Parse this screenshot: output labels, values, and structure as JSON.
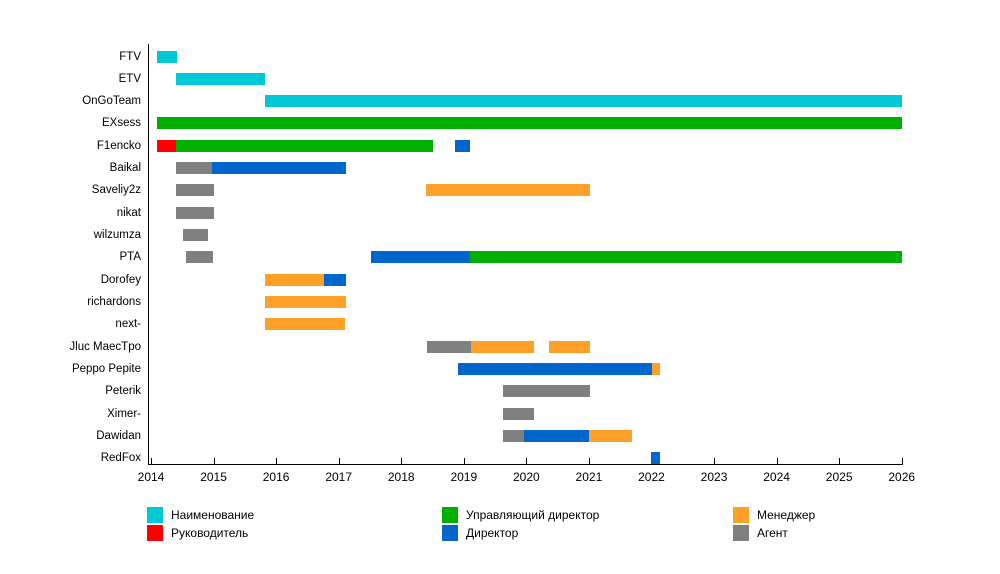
{
  "chart_data": {
    "type": "gantt",
    "title": "",
    "x_axis": {
      "min": 2014,
      "max": 2026,
      "tick_labels": [
        "2014",
        "2015",
        "2016",
        "2017",
        "2018",
        "2019",
        "2020",
        "2021",
        "2022",
        "2023",
        "2024",
        "2025",
        "2026"
      ]
    },
    "legend_position": "bottom",
    "legend": [
      {
        "label": "Наименование",
        "role": "name"
      },
      {
        "label": "Руководитель",
        "role": "head"
      },
      {
        "label": "Управляющий директор",
        "role": "managing_director"
      },
      {
        "label": "Директор",
        "role": "director"
      },
      {
        "label": "Менеджер",
        "role": "manager"
      },
      {
        "label": "Агент",
        "role": "agent"
      }
    ],
    "colors": {
      "name": "#00C8D4",
      "head": "#FF0000",
      "managing_director": "#00AF00",
      "director": "#0066CC",
      "manager": "#FFA028",
      "agent": "#808080"
    },
    "rows": [
      {
        "label": "FTV",
        "segments": [
          {
            "role": "name",
            "start": 2014.1,
            "end": 2014.41
          }
        ]
      },
      {
        "label": "ETV",
        "segments": [
          {
            "role": "name",
            "start": 2014.4,
            "end": 2015.83
          }
        ]
      },
      {
        "label": "OnGoTeam",
        "segments": [
          {
            "role": "name",
            "start": 2015.82,
            "end": 2026.0
          }
        ]
      },
      {
        "label": "EXsess",
        "segments": [
          {
            "role": "managing_director",
            "start": 2014.1,
            "end": 2026.0
          }
        ]
      },
      {
        "label": "F1encko",
        "segments": [
          {
            "role": "head",
            "start": 2014.1,
            "end": 2014.4
          },
          {
            "role": "managing_director",
            "start": 2014.4,
            "end": 2018.51
          },
          {
            "role": "director",
            "start": 2018.86,
            "end": 2019.1
          }
        ]
      },
      {
        "label": "Baikal",
        "segments": [
          {
            "role": "agent",
            "start": 2014.4,
            "end": 2014.98
          },
          {
            "role": "director",
            "start": 2014.98,
            "end": 2017.11
          }
        ]
      },
      {
        "label": "Saveliy2z",
        "segments": [
          {
            "role": "agent",
            "start": 2014.4,
            "end": 2015.0
          },
          {
            "role": "manager",
            "start": 2018.4,
            "end": 2021.01
          }
        ]
      },
      {
        "label": "nikat",
        "segments": [
          {
            "role": "agent",
            "start": 2014.4,
            "end": 2015.0
          }
        ]
      },
      {
        "label": "wilzumza",
        "segments": [
          {
            "role": "agent",
            "start": 2014.51,
            "end": 2014.91
          }
        ]
      },
      {
        "label": "PTA",
        "segments": [
          {
            "role": "agent",
            "start": 2014.56,
            "end": 2014.99
          },
          {
            "role": "director",
            "start": 2017.52,
            "end": 2019.1
          },
          {
            "role": "managing_director",
            "start": 2019.1,
            "end": 2026.0
          }
        ]
      },
      {
        "label": "Dorofey",
        "segments": [
          {
            "role": "manager",
            "start": 2015.82,
            "end": 2016.77
          },
          {
            "role": "director",
            "start": 2016.77,
            "end": 2017.11
          }
        ]
      },
      {
        "label": "richardons",
        "segments": [
          {
            "role": "manager",
            "start": 2015.82,
            "end": 2017.11
          }
        ]
      },
      {
        "label": "next-",
        "segments": [
          {
            "role": "manager",
            "start": 2015.82,
            "end": 2017.1
          }
        ]
      },
      {
        "label": "Jluc MaecTpo",
        "segments": [
          {
            "role": "agent",
            "start": 2018.41,
            "end": 2019.11
          },
          {
            "role": "manager",
            "start": 2019.11,
            "end": 2020.12
          },
          {
            "role": "manager",
            "start": 2020.36,
            "end": 2021.01
          }
        ]
      },
      {
        "label": "Peppo Pepite",
        "segments": [
          {
            "role": "director",
            "start": 2018.9,
            "end": 2022.01
          },
          {
            "role": "manager",
            "start": 2022.01,
            "end": 2022.14
          }
        ]
      },
      {
        "label": "Peterik",
        "segments": [
          {
            "role": "agent",
            "start": 2019.62,
            "end": 2021.01
          }
        ]
      },
      {
        "label": "Ximer-",
        "segments": [
          {
            "role": "agent",
            "start": 2019.62,
            "end": 2020.12
          }
        ]
      },
      {
        "label": "Dawidan",
        "segments": [
          {
            "role": "agent",
            "start": 2019.62,
            "end": 2019.97
          },
          {
            "role": "director",
            "start": 2019.97,
            "end": 2021.0
          },
          {
            "role": "manager",
            "start": 2021.0,
            "end": 2021.69
          }
        ]
      },
      {
        "label": "RedFox",
        "segments": [
          {
            "role": "director",
            "start": 2021.99,
            "end": 2022.14
          }
        ]
      }
    ]
  }
}
